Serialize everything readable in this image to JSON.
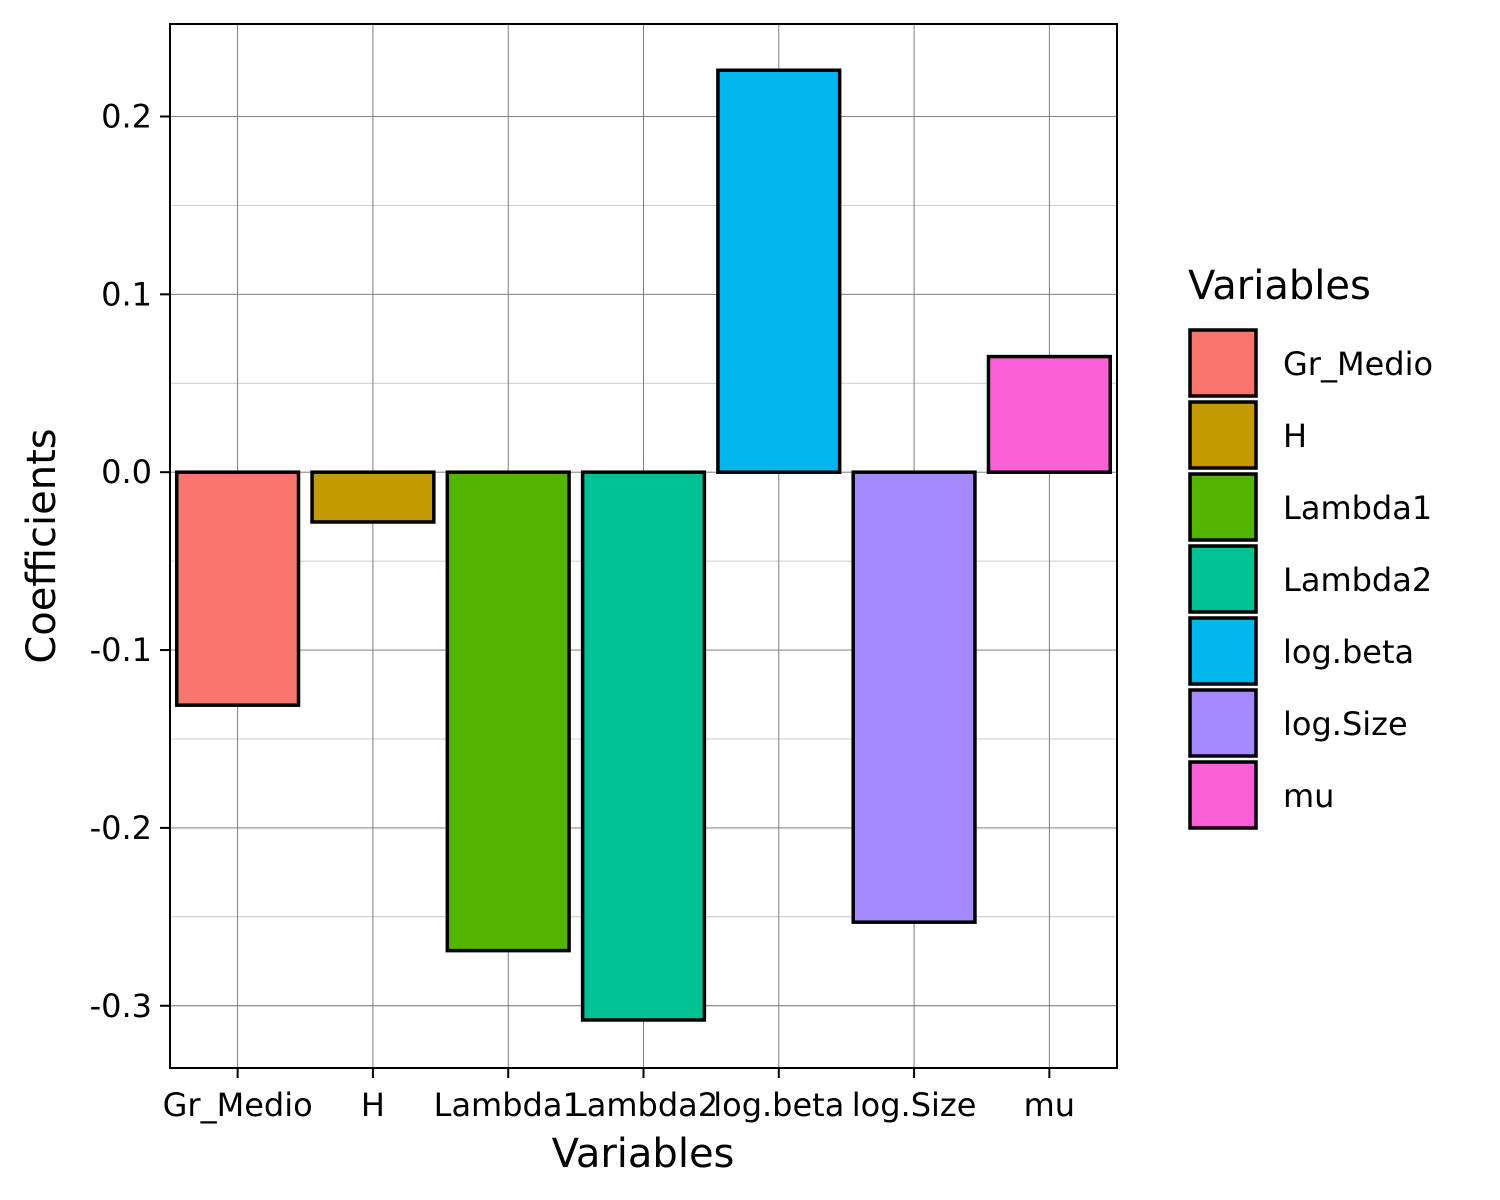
{
  "chart_data": {
    "type": "bar",
    "title": "",
    "xlabel": "Variables",
    "ylabel": "Coefficients",
    "categories": [
      "Gr_Medio",
      "H",
      "Lambda1",
      "Lambda2",
      "log.beta",
      "log.Size",
      "mu"
    ],
    "values": [
      -0.131,
      -0.028,
      -0.269,
      -0.308,
      0.226,
      -0.253,
      0.065
    ],
    "colors": [
      "#F8766D",
      "#C49A00",
      "#53B400",
      "#00C094",
      "#00B6EB",
      "#A58AFF",
      "#FB61D7"
    ],
    "ylim": [
      -0.335,
      0.252
    ],
    "yticks": [
      -0.3,
      -0.2,
      -0.1,
      0.0,
      0.1,
      0.2
    ],
    "ytick_labels": [
      "-0.3",
      "-0.2",
      "-0.1",
      "0.0",
      "0.1",
      "0.2"
    ],
    "grid": true,
    "legend": {
      "title": "Variables",
      "position": "right",
      "entries": [
        "Gr_Medio",
        "H",
        "Lambda1",
        "Lambda2",
        "log.beta",
        "log.Size",
        "mu"
      ]
    }
  }
}
